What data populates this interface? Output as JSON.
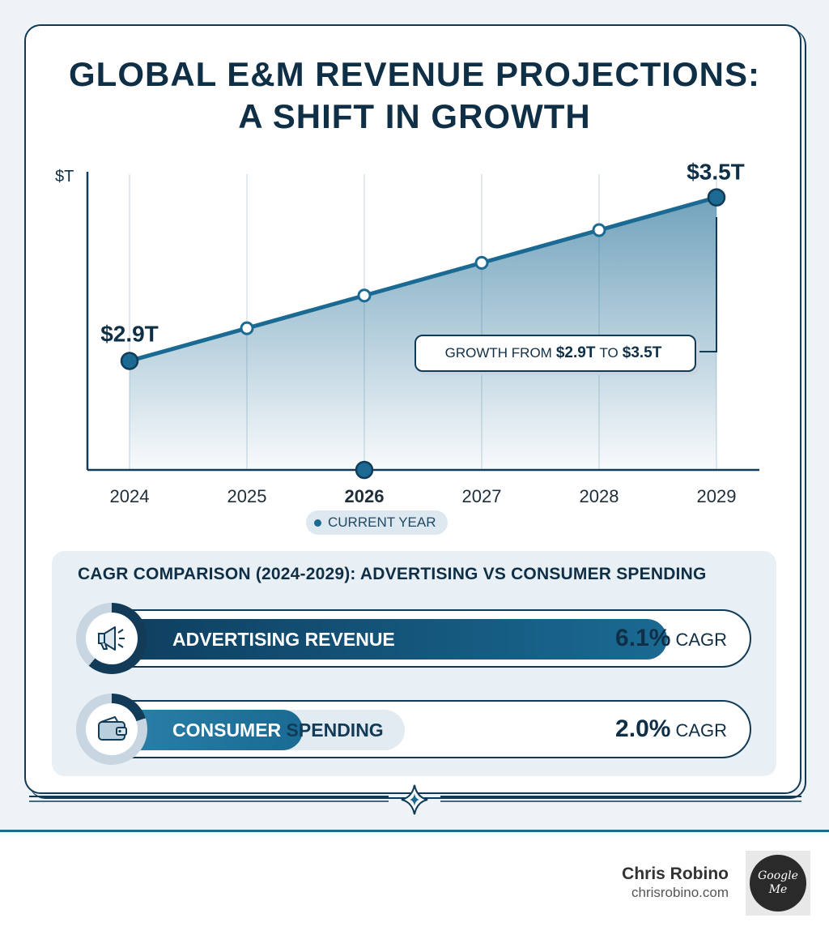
{
  "title": {
    "line1": "GLOBAL E&M REVENUE PROJECTIONS:",
    "line2": "A SHIFT IN GROWTH"
  },
  "chart_data": [
    {
      "type": "area",
      "ylabel": "$T",
      "categories": [
        "2024",
        "2025",
        "2026",
        "2027",
        "2028",
        "2029"
      ],
      "series": [
        {
          "values": [
            2.9,
            3.02,
            3.14,
            3.26,
            3.38,
            3.5
          ]
        }
      ],
      "ylim": [
        2.5,
        3.6
      ],
      "highlight_category": "2026",
      "data_labels": {
        "start": "$2.9T",
        "end": "$3.5T"
      },
      "annotation": {
        "prefix": "GROWTH FROM",
        "from": "$2.9T",
        "mid": "TO",
        "to": "$3.5T"
      },
      "current_year_label": "CURRENT YEAR",
      "grid": "vertical",
      "colors": {
        "line": "#1a6a93",
        "fill": "#1a6a93",
        "axis": "#123b57"
      }
    },
    {
      "type": "bar",
      "title": "CAGR COMPARISON (2024-2029): ADVERTISING VS CONSUMER SPENDING",
      "categories": [
        "ADVERTISING REVENUE",
        "CONSUMER SPENDING"
      ],
      "values": [
        6.1,
        2.0
      ],
      "value_labels": [
        "6.1%",
        "2.0%"
      ],
      "unit": "CAGR",
      "icons": [
        "megaphone-icon",
        "wallet-icon"
      ],
      "label_split": [
        "CONSUMER",
        " SPENDING"
      ]
    }
  ],
  "footer": {
    "author": "Chris Robino",
    "site": "chrisrobino.com",
    "badge_line1": "Google",
    "badge_line2": "Me"
  }
}
